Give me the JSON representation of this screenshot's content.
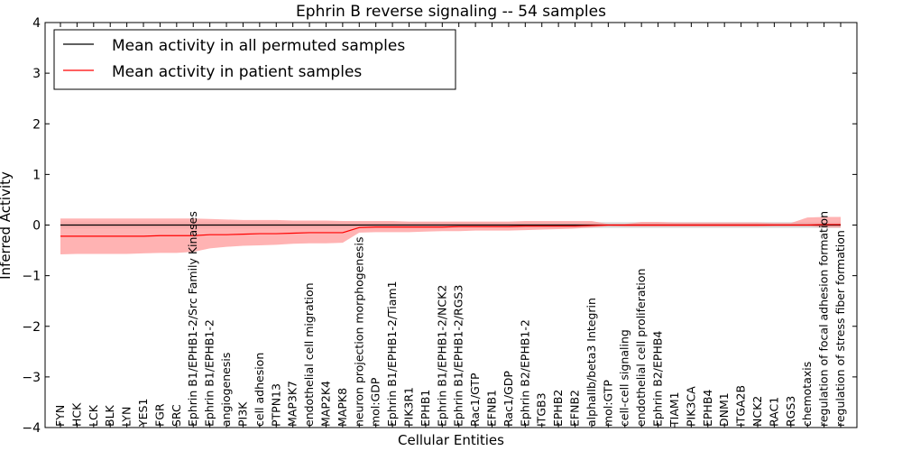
{
  "chart_data": {
    "type": "line",
    "title": "Ephrin B reverse signaling -- 54 samples",
    "xlabel": "Cellular Entities",
    "ylabel": "Inferred Activity",
    "ylim": [
      -4,
      4
    ],
    "yticks": [
      -4,
      -3,
      -2,
      -1,
      0,
      1,
      2,
      3,
      4
    ],
    "ytick_labels": [
      "−4",
      "−3",
      "−2",
      "−1",
      "0",
      "1",
      "2",
      "3",
      "4"
    ],
    "legend_position": "top-left",
    "colors": {
      "permuted": "#000000",
      "patient": "#ff0000",
      "patient_band": "#ff9a9a",
      "permuted_band": "#d9d9d9"
    },
    "categories": [
      "FYN",
      "HCK",
      "LCK",
      "BLK",
      "LYN",
      "YES1",
      "FGR",
      "SRC",
      "Ephrin B1/EPHB1-2/Src Family Kinases",
      "Ephrin B1/EPHB1-2",
      "angiogenesis",
      "PI3K",
      "cell adhesion",
      "PTPN13",
      "MAP3K7",
      "endothelial cell migration",
      "MAP2K4",
      "MAPK8",
      "neuron projection morphogenesis",
      "mol:GDP",
      "Ephrin B1/EPHB1-2/Tiam1",
      "PIK3R1",
      "EPHB1",
      "Ephrin B1/EPHB1-2/NCK2",
      "Ephrin B1/EPHB1-2/RGS3",
      "Rac1/GTP",
      "EFNB1",
      "Rac1/GDP",
      "Ephrin B2/EPHB1-2",
      "ITGB3",
      "EPHB2",
      "EFNB2",
      "alphaIIb/beta3 Integrin",
      "mol:GTP",
      "cell-cell signaling",
      "endothelial cell proliferation",
      "Ephrin B2/EPHB4",
      "TIAM1",
      "PIK3CA",
      "EPHB4",
      "DNM1",
      "ITGA2B",
      "NCK2",
      "RAC1",
      "RGS3",
      "chemotaxis",
      "regulation of focal adhesion formation",
      "regulation of stress fiber formation"
    ],
    "series": [
      {
        "name": "Mean activity in all permuted samples",
        "values": [
          0,
          0,
          0,
          0,
          0,
          0,
          0,
          0,
          0,
          0,
          0,
          0,
          0,
          0,
          0,
          0,
          0,
          0,
          0,
          0,
          0,
          0,
          0,
          0,
          0,
          0,
          0,
          0,
          0,
          0,
          0,
          0,
          0,
          0,
          0,
          0,
          0,
          0,
          0,
          0,
          0,
          0,
          0,
          0,
          0,
          0,
          0,
          0
        ],
        "lower": [
          -0.07,
          -0.07,
          -0.07,
          -0.07,
          -0.07,
          -0.07,
          -0.07,
          -0.07,
          -0.07,
          -0.07,
          -0.07,
          -0.07,
          -0.07,
          -0.07,
          -0.07,
          -0.07,
          -0.07,
          -0.07,
          -0.06,
          -0.06,
          -0.06,
          -0.06,
          -0.06,
          -0.06,
          -0.06,
          -0.06,
          -0.06,
          -0.06,
          -0.06,
          -0.06,
          -0.06,
          -0.06,
          -0.06,
          -0.06,
          -0.06,
          -0.06,
          -0.06,
          -0.06,
          -0.06,
          -0.06,
          -0.06,
          -0.06,
          -0.06,
          -0.06,
          -0.06,
          -0.06,
          -0.06,
          -0.06
        ],
        "upper": [
          0.07,
          0.07,
          0.07,
          0.07,
          0.07,
          0.07,
          0.07,
          0.07,
          0.07,
          0.07,
          0.07,
          0.07,
          0.07,
          0.07,
          0.07,
          0.07,
          0.07,
          0.07,
          0.06,
          0.06,
          0.06,
          0.06,
          0.06,
          0.06,
          0.06,
          0.06,
          0.06,
          0.06,
          0.06,
          0.06,
          0.06,
          0.06,
          0.06,
          0.06,
          0.06,
          0.06,
          0.06,
          0.06,
          0.06,
          0.06,
          0.06,
          0.06,
          0.06,
          0.06,
          0.06,
          0.06,
          0.06,
          0.06
        ]
      },
      {
        "name": "Mean activity in patient samples",
        "values": [
          -0.22,
          -0.22,
          -0.22,
          -0.22,
          -0.22,
          -0.22,
          -0.21,
          -0.21,
          -0.21,
          -0.19,
          -0.19,
          -0.18,
          -0.17,
          -0.17,
          -0.16,
          -0.15,
          -0.15,
          -0.15,
          -0.05,
          -0.04,
          -0.04,
          -0.04,
          -0.04,
          -0.04,
          -0.03,
          -0.03,
          -0.03,
          -0.03,
          -0.02,
          -0.02,
          -0.02,
          -0.02,
          -0.01,
          0,
          0,
          0,
          0,
          0,
          0,
          0,
          0,
          0,
          0,
          0,
          0,
          0,
          0.01,
          0.01
        ],
        "lower": [
          -0.58,
          -0.57,
          -0.57,
          -0.57,
          -0.57,
          -0.56,
          -0.55,
          -0.55,
          -0.53,
          -0.46,
          -0.43,
          -0.41,
          -0.4,
          -0.39,
          -0.37,
          -0.36,
          -0.36,
          -0.35,
          -0.15,
          -0.14,
          -0.14,
          -0.14,
          -0.13,
          -0.12,
          -0.12,
          -0.11,
          -0.11,
          -0.11,
          -0.1,
          -0.09,
          -0.08,
          -0.07,
          -0.05,
          -0.02,
          -0.03,
          -0.03,
          -0.03,
          -0.03,
          -0.03,
          -0.03,
          -0.03,
          -0.03,
          -0.03,
          -0.02,
          -0.02,
          -0.02,
          -0.05,
          -0.05
        ],
        "upper": [
          0.13,
          0.13,
          0.13,
          0.13,
          0.13,
          0.13,
          0.13,
          0.13,
          0.13,
          0.12,
          0.11,
          0.1,
          0.1,
          0.1,
          0.09,
          0.09,
          0.09,
          0.08,
          0.08,
          0.08,
          0.08,
          0.07,
          0.07,
          0.07,
          0.07,
          0.07,
          0.07,
          0.07,
          0.08,
          0.08,
          0.08,
          0.08,
          0.08,
          0.02,
          0.02,
          0.06,
          0.06,
          0.05,
          0.05,
          0.05,
          0.05,
          0.05,
          0.05,
          0.04,
          0.04,
          0.15,
          0.16,
          0.16
        ]
      }
    ]
  }
}
